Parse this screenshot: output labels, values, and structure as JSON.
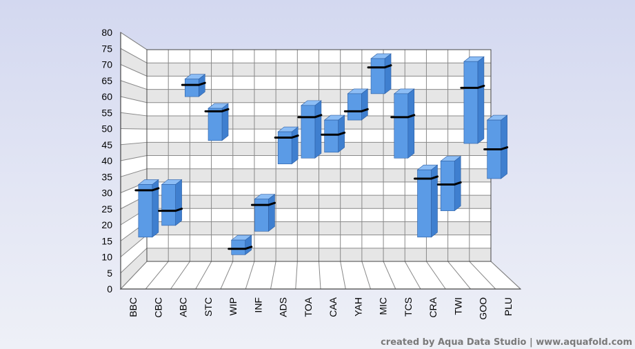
{
  "chart_data": {
    "type": "candlestick-3d",
    "categories": [
      "BBC",
      "CBC",
      "ABC",
      "STC",
      "WIP",
      "INF",
      "ADS",
      "TOA",
      "CAA",
      "YAH",
      "MIC",
      "TCS",
      "CRA",
      "TWI",
      "GOO",
      "PLU"
    ],
    "series": [
      {
        "low": 13,
        "high": 31,
        "close": 29
      },
      {
        "low": 17,
        "high": 31,
        "close": 22
      },
      {
        "low": 61,
        "high": 67,
        "close": 65
      },
      {
        "low": 46,
        "high": 57,
        "close": 56
      },
      {
        "low": 7,
        "high": 12,
        "close": 9
      },
      {
        "low": 15,
        "high": 26,
        "close": 24
      },
      {
        "low": 38,
        "high": 49,
        "close": 47
      },
      {
        "low": 40,
        "high": 58,
        "close": 54
      },
      {
        "low": 42,
        "high": 53,
        "close": 48
      },
      {
        "low": 53,
        "high": 62,
        "close": 56
      },
      {
        "low": 62,
        "high": 74,
        "close": 71
      },
      {
        "low": 40,
        "high": 62,
        "close": 54
      },
      {
        "low": 13,
        "high": 36,
        "close": 33
      },
      {
        "low": 22,
        "high": 39,
        "close": 31
      },
      {
        "low": 45,
        "high": 73,
        "close": 64
      },
      {
        "low": 33,
        "high": 53,
        "close": 43
      }
    ],
    "ylim": [
      0,
      80
    ],
    "yticks": [
      0,
      5,
      10,
      15,
      20,
      25,
      30,
      35,
      40,
      45,
      50,
      55,
      60,
      65,
      70,
      75,
      80
    ],
    "grid": true,
    "colors": {
      "box": "#5b9be6",
      "box_side": "#3f7fcf",
      "box_top": "#8cbdf5",
      "close": "#000000"
    }
  },
  "footer": "created by Aqua Data Studio | www.aquafold.com"
}
